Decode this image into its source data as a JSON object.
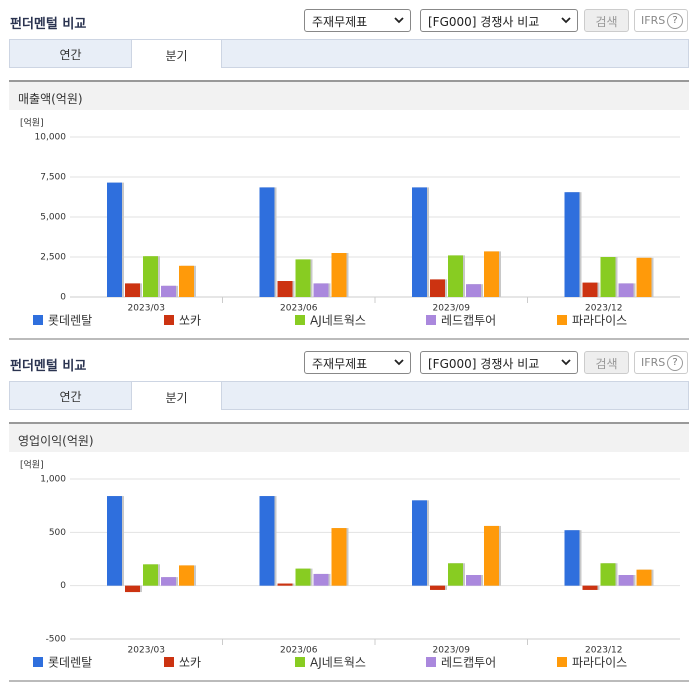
{
  "panels": [
    {
      "title": "펀더멘털 비교",
      "statement": "주재무제표",
      "peer": "[FG000] 경쟁사 비교",
      "search": "검색",
      "ifrs": "IFRS",
      "help": "?",
      "tabs": [
        "연간",
        "분기"
      ]
    },
    {
      "title": "펀더멘털 비교",
      "statement": "주재무제표",
      "peer": "[FG000] 경쟁사 비교",
      "search": "검색",
      "ifrs": "IFRS",
      "help": "?",
      "tabs": [
        "연간",
        "분기"
      ]
    }
  ],
  "chart_data": [
    {
      "type": "bar",
      "title": "매출액(억원)",
      "unit_label": "[억원]",
      "categories": [
        "2023/03",
        "2023/06",
        "2023/09",
        "2023/12"
      ],
      "series": [
        {
          "name": "롯데렌탈",
          "color": "#2f6fdd",
          "values": [
            7150,
            6850,
            6850,
            6550
          ]
        },
        {
          "name": "쏘카",
          "color": "#cc3311",
          "values": [
            850,
            1000,
            1100,
            900
          ]
        },
        {
          "name": "AJ네트웍스",
          "color": "#88cc22",
          "values": [
            2550,
            2350,
            2600,
            2500
          ]
        },
        {
          "name": "레드캡투어",
          "color": "#aa88dd",
          "values": [
            700,
            850,
            800,
            850
          ]
        },
        {
          "name": "파라다이스",
          "color": "#ff9a0a",
          "values": [
            1950,
            2750,
            2850,
            2450
          ]
        }
      ],
      "ylim": [
        0,
        10000
      ],
      "yticks": [
        0,
        {
          "value": 2500,
          "label": "2,500"
        },
        {
          "value": 5000,
          "label": "5,000"
        },
        {
          "value": 7500,
          "label": "7,500"
        },
        {
          "value": 10000,
          "label": "10,000"
        }
      ],
      "grid": true
    },
    {
      "type": "bar",
      "title": "영업이익(억원)",
      "unit_label": "[억원]",
      "categories": [
        "2023/03",
        "2023/06",
        "2023/09",
        "2023/12"
      ],
      "series": [
        {
          "name": "롯데렌탈",
          "color": "#2f6fdd",
          "values": [
            840,
            840,
            800,
            520
          ]
        },
        {
          "name": "쏘카",
          "color": "#cc3311",
          "values": [
            -60,
            20,
            -40,
            -40
          ]
        },
        {
          "name": "AJ네트웍스",
          "color": "#88cc22",
          "values": [
            200,
            160,
            210,
            210
          ]
        },
        {
          "name": "레드캡투어",
          "color": "#aa88dd",
          "values": [
            80,
            110,
            100,
            100
          ]
        },
        {
          "name": "파라다이스",
          "color": "#ff9a0a",
          "values": [
            190,
            540,
            560,
            150
          ]
        }
      ],
      "ylim": [
        -500,
        1000
      ],
      "yticks": [
        -500,
        0,
        500,
        {
          "value": 1000,
          "label": "1,000"
        }
      ],
      "grid": true
    }
  ]
}
